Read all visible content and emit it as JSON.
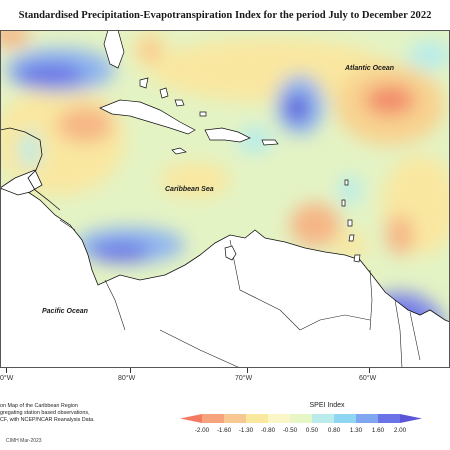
{
  "title": "Standardised Precipitation-Evapotranspiration Index for the period July to December 2022",
  "labels": {
    "atlantic": "Atlantic Ocean",
    "caribbean": "Caribbean Sea",
    "pacific": "Pacific Ocean"
  },
  "axis": {
    "ticks": [
      "0°W",
      "80°W",
      "70°W",
      "60°W"
    ]
  },
  "notes": {
    "line1": "on Map of the Caribbean Region",
    "line2": "gregating station based observations,",
    "line3": "CF, with NCEP/NCAR Reanalysis Data."
  },
  "legend": {
    "title": "SPEI Index",
    "values": [
      "-2.00",
      "-1.60",
      "-1.30",
      "-0.80",
      "-0.50",
      "0.50",
      "0.80",
      "1.30",
      "1.60",
      "2.00"
    ],
    "colors": [
      "#f47a62",
      "#f6a37e",
      "#f8c892",
      "#fae89e",
      "#fbf6c8",
      "#e6f6c4",
      "#b9ecea",
      "#8fd6f2",
      "#7fa6ee",
      "#6a74e6",
      "#5b55d8"
    ]
  },
  "credit": "CIMH Mar-2023",
  "colors": {
    "sea_base": "#e4f3c4",
    "land": "#ffffff",
    "coast": "#111111"
  }
}
